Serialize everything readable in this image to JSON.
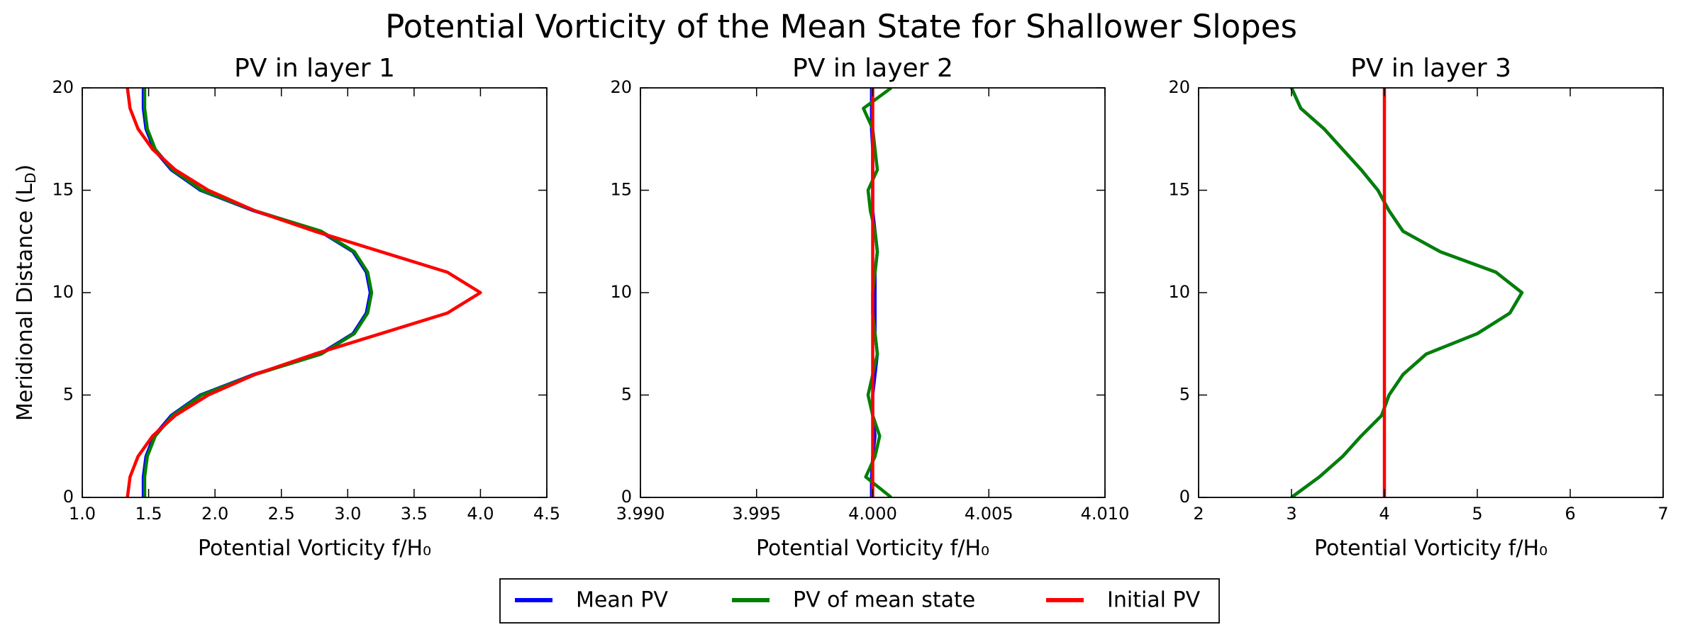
{
  "title": "Potential Vorticity of the Mean State for Shallower Slopes",
  "chart_data": [
    {
      "type": "line",
      "title": "PV in layer 1",
      "xlabel": "Potential Vorticity f/H₀",
      "ylabel": {
        "text": "Meridional Distance (L",
        "sub": "D",
        "tail": ")"
      },
      "y": [
        0,
        1,
        2,
        3,
        4,
        5,
        6,
        7,
        8,
        9,
        10,
        11,
        12,
        13,
        14,
        15,
        16,
        17,
        18,
        19,
        20
      ],
      "xlim": [
        1.0,
        4.5
      ],
      "xticks": [
        {
          "value": 1.0,
          "label": "1.0"
        },
        1.5,
        {
          "value": 2.0,
          "label": "2.0"
        },
        2.5,
        {
          "value": 3.0,
          "label": "3.0"
        },
        3.5,
        {
          "value": 4.0,
          "label": "4.0"
        },
        4.5
      ],
      "ylim": [
        0,
        20
      ],
      "yticks": [
        0,
        5,
        10,
        15,
        20
      ],
      "series": [
        {
          "name": "Mean PV",
          "color": "#0000ff",
          "values": [
            1.46,
            1.46,
            1.48,
            1.54,
            1.67,
            1.89,
            2.29,
            2.79,
            3.04,
            3.14,
            3.17,
            3.14,
            3.04,
            2.79,
            2.29,
            1.89,
            1.67,
            1.54,
            1.48,
            1.46,
            1.46
          ]
        },
        {
          "name": "PV of mean state",
          "color": "#008000",
          "values": [
            1.47,
            1.47,
            1.49,
            1.55,
            1.68,
            1.9,
            2.3,
            2.8,
            3.05,
            3.15,
            3.18,
            3.15,
            3.05,
            2.8,
            2.3,
            1.9,
            1.68,
            1.55,
            1.49,
            1.47,
            1.47
          ]
        },
        {
          "name": "Initial PV",
          "color": "#ff0000",
          "values": [
            1.34,
            1.36,
            1.42,
            1.53,
            1.7,
            1.95,
            2.3,
            2.75,
            3.25,
            3.75,
            4.0,
            3.75,
            3.25,
            2.75,
            2.3,
            1.95,
            1.7,
            1.53,
            1.42,
            1.36,
            1.34
          ]
        }
      ]
    },
    {
      "type": "line",
      "title": "PV in layer 2",
      "xlabel": "Potential Vorticity f/H₀",
      "y": [
        0,
        1,
        2,
        3,
        4,
        5,
        6,
        7,
        8,
        9,
        10,
        11,
        12,
        13,
        14,
        15,
        16,
        17,
        18,
        19,
        20
      ],
      "xlim": [
        3.99,
        4.01
      ],
      "xticks": [
        {
          "value": 3.99,
          "label": "3.990"
        },
        {
          "value": 3.995,
          "label": "3.995"
        },
        {
          "value": 4.0,
          "label": "4.000"
        },
        {
          "value": 4.005,
          "label": "4.005"
        },
        {
          "value": 4.01,
          "label": "4.010"
        }
      ],
      "ylim": [
        0,
        20
      ],
      "yticks": [
        0,
        5,
        10,
        15,
        20
      ],
      "series": [
        {
          "color": "#0000ff",
          "values": [
            3.99995,
            3.99995,
            4.0,
            4.0001,
            4.0,
            4.0,
            4.0001,
            4.0002,
            4.0001,
            4.0001,
            4.0001,
            4.0001,
            4.0002,
            4.0001,
            4.0,
            4.0,
            4.0,
            4.0,
            3.99995,
            3.99995,
            3.99995
          ]
        },
        {
          "color": "#008000",
          "values": [
            4.0008,
            3.9997,
            4.0001,
            4.0003,
            4.0,
            3.9998,
            4.0,
            4.0002,
            4.0001,
            4.0,
            4.0,
            4.0001,
            4.0002,
            4.0001,
            3.9999,
            3.9998,
            4.0002,
            4.0001,
            4.0,
            3.9996,
            4.0008
          ]
        },
        {
          "color": "#ff0000",
          "values": [
            4.0,
            4.0,
            4.0,
            4.0,
            4.0,
            4.0,
            4.0,
            4.0,
            4.0,
            4.0,
            4.0,
            4.0,
            4.0,
            4.0,
            4.0,
            4.0,
            4.0,
            4.0,
            4.0,
            4.0,
            4.0
          ]
        }
      ]
    },
    {
      "type": "line",
      "title": "PV in layer 3",
      "xlabel": "Potential Vorticity f/H₀",
      "y": [
        0,
        1,
        2,
        3,
        4,
        5,
        6,
        7,
        8,
        9,
        10,
        11,
        12,
        13,
        14,
        15,
        16,
        17,
        18,
        19,
        20
      ],
      "xlim": [
        2,
        7
      ],
      "xticks": [
        2,
        3,
        4,
        5,
        6,
        7
      ],
      "ylim": [
        0,
        20
      ],
      "yticks": [
        0,
        5,
        10,
        15,
        20
      ],
      "series": [
        {
          "color": "#0000ff",
          "values": [
            3.0,
            3.3,
            3.55,
            3.75,
            3.97,
            4.05,
            4.2,
            4.45,
            5.0,
            5.35,
            5.48,
            5.2,
            4.6,
            4.2,
            4.05,
            3.93,
            3.75,
            3.55,
            3.35,
            3.1,
            3.0
          ]
        },
        {
          "color": "#008000",
          "values": [
            3.0,
            3.3,
            3.55,
            3.75,
            3.97,
            4.05,
            4.2,
            4.45,
            5.0,
            5.35,
            5.48,
            5.2,
            4.6,
            4.2,
            4.05,
            3.93,
            3.75,
            3.55,
            3.35,
            3.1,
            3.0
          ]
        },
        {
          "color": "#ff0000",
          "values": [
            4,
            4,
            4,
            4,
            4,
            4,
            4,
            4,
            4,
            4,
            4,
            4,
            4,
            4,
            4,
            4,
            4,
            4,
            4,
            4,
            4
          ]
        }
      ]
    }
  ]
}
